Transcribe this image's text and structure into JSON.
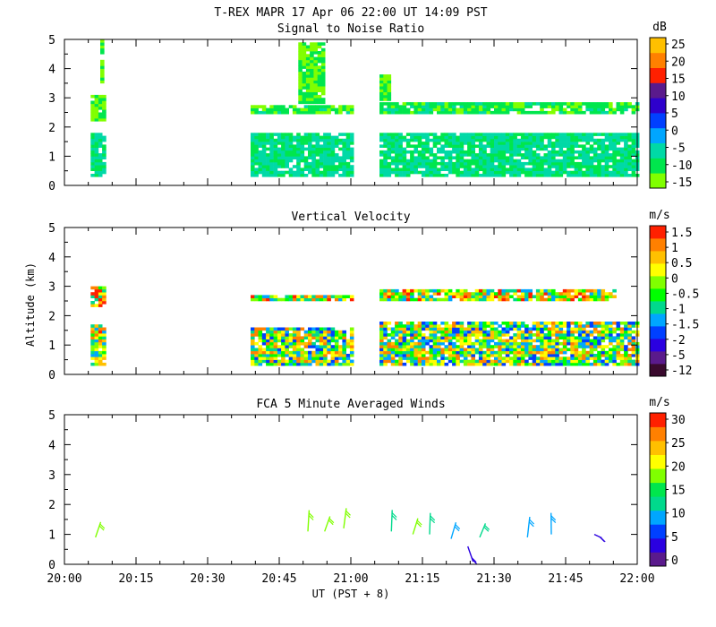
{
  "title": "T-REX  MAPR 17 Apr 06  22:00 UT  14:09  PST",
  "xlabel": "UT  (PST + 8)",
  "ylabel": "Altitude (km)",
  "x_ticks": [
    "20:00",
    "20:15",
    "20:30",
    "20:45",
    "21:00",
    "21:15",
    "21:30",
    "21:45",
    "22:00"
  ],
  "colors": {
    "snr_scale": [
      "#80ff00",
      "#00e64d",
      "#00d9a6",
      "#00a6ff",
      "#0040ff",
      "#2e00cc",
      "#5a1a8c",
      "#ff2000",
      "#ff8000",
      "#ffc000"
    ],
    "velocity_scale": [
      "#3a0a2e",
      "#5a1a8c",
      "#2a00e0",
      "#0040ff",
      "#00a6ff",
      "#00d98c",
      "#00ff00",
      "#80ff00",
      "#ffff00",
      "#ffc000",
      "#ff8000",
      "#ff2000"
    ],
    "wind_scale": [
      "#5a1a8c",
      "#2a00e0",
      "#0040ff",
      "#00a6ff",
      "#00d98c",
      "#00e64d",
      "#80ff00",
      "#ffff00",
      "#ffc000",
      "#ff8000",
      "#ff2000"
    ]
  },
  "chart_data": [
    {
      "type": "heatmap",
      "title": "Signal to Noise Ratio",
      "units": "dB",
      "xlim": [
        0,
        120
      ],
      "ylim": [
        0,
        5
      ],
      "y_ticks": [
        "0",
        "1",
        "2",
        "3",
        "4",
        "5"
      ],
      "colorbar_labels": [
        "25",
        "20",
        "15",
        "10",
        "5",
        "0",
        "-5",
        "-10",
        "-15"
      ],
      "series": [
        {
          "name": "layer",
          "x_start": 5.5,
          "x_end": 8,
          "y_low": 2.2,
          "y_high": 3.1,
          "value": -13
        },
        {
          "name": "layer",
          "x_start": 5.5,
          "x_end": 8,
          "y_low": 0.3,
          "y_high": 1.8,
          "value": -9
        },
        {
          "name": "layer",
          "x_start": 7.5,
          "x_end": 8,
          "y_low": 3.5,
          "y_high": 5.0,
          "value": -14
        },
        {
          "name": "layer",
          "x_start": 39,
          "x_end": 60,
          "y_low": 2.45,
          "y_high": 2.75,
          "value": -12
        },
        {
          "name": "layer",
          "x_start": 39,
          "x_end": 60,
          "y_low": 0.3,
          "y_high": 1.8,
          "value": -8
        },
        {
          "name": "layer",
          "x_start": 49,
          "x_end": 54,
          "y_low": 2.8,
          "y_high": 4.8,
          "value": -14
        },
        {
          "name": "layer",
          "x_start": 66,
          "x_end": 120,
          "y_low": 2.45,
          "y_high": 2.85,
          "value": -11
        },
        {
          "name": "layer",
          "x_start": 66,
          "x_end": 120,
          "y_low": 0.3,
          "y_high": 1.8,
          "value": -8
        },
        {
          "name": "layer",
          "x_start": 66,
          "x_end": 68,
          "y_low": 2.9,
          "y_high": 3.8,
          "value": -14
        }
      ]
    },
    {
      "type": "heatmap",
      "title": "Vertical Velocity",
      "units": "m/s",
      "xlim": [
        0,
        120
      ],
      "ylim": [
        0,
        5
      ],
      "y_ticks": [
        "0",
        "1",
        "2",
        "3",
        "4",
        "5"
      ],
      "colorbar_labels": [
        "1.5",
        "1",
        "0.5",
        "0",
        "-0.5",
        "-1",
        "-1.5",
        "-2",
        "-5",
        "-12"
      ],
      "series": [
        {
          "name": "layer",
          "x_start": 5.5,
          "x_end": 8,
          "y_low": 2.3,
          "y_high": 3.0,
          "value": 0.5
        },
        {
          "name": "layer",
          "x_start": 5.5,
          "x_end": 8,
          "y_low": 0.3,
          "y_high": 1.7,
          "value": 0
        },
        {
          "name": "layer",
          "x_start": 39,
          "x_end": 60,
          "y_low": 2.5,
          "y_high": 2.7,
          "value": 0
        },
        {
          "name": "layer",
          "x_start": 39,
          "x_end": 60,
          "y_low": 0.3,
          "y_high": 1.6,
          "value": -0.5
        },
        {
          "name": "layer",
          "x_start": 66,
          "x_end": 115,
          "y_low": 2.5,
          "y_high": 2.9,
          "value": 0
        },
        {
          "name": "layer",
          "x_start": 66,
          "x_end": 120,
          "y_low": 0.3,
          "y_high": 1.8,
          "value": -0.5
        }
      ]
    },
    {
      "type": "scatter",
      "title": "FCA 5 Minute Averaged Winds",
      "units": "m/s",
      "xlim": [
        0,
        120
      ],
      "ylim": [
        0,
        5
      ],
      "y_ticks": [
        "0",
        "1",
        "2",
        "3",
        "4",
        "5"
      ],
      "colorbar_labels": [
        "30",
        "25",
        "20",
        "15",
        "10",
        "5",
        "0"
      ],
      "series": [
        {
          "name": "wind",
          "x": 6.5,
          "y": 0.9,
          "speed": 20
        },
        {
          "name": "wind",
          "x": 51,
          "y": 1.1,
          "speed": 20
        },
        {
          "name": "wind",
          "x": 54.5,
          "y": 1.1,
          "speed": 19
        },
        {
          "name": "wind",
          "x": 58.5,
          "y": 1.2,
          "speed": 18
        },
        {
          "name": "wind",
          "x": 68.5,
          "y": 1.1,
          "speed": 14
        },
        {
          "name": "wind",
          "x": 73,
          "y": 1.0,
          "speed": 20
        },
        {
          "name": "wind",
          "x": 76.5,
          "y": 1.0,
          "speed": 14
        },
        {
          "name": "wind",
          "x": 81,
          "y": 0.85,
          "speed": 10
        },
        {
          "name": "wind",
          "x": 84.5,
          "y": 0.6,
          "speed": 4
        },
        {
          "name": "wind",
          "x": 87,
          "y": 0.9,
          "speed": 13
        },
        {
          "name": "wind",
          "x": 97,
          "y": 0.9,
          "speed": 10
        },
        {
          "name": "wind",
          "x": 102,
          "y": 1.0,
          "speed": 11
        },
        {
          "name": "wind",
          "x": 111,
          "y": 1.0,
          "speed": 5
        }
      ]
    }
  ]
}
